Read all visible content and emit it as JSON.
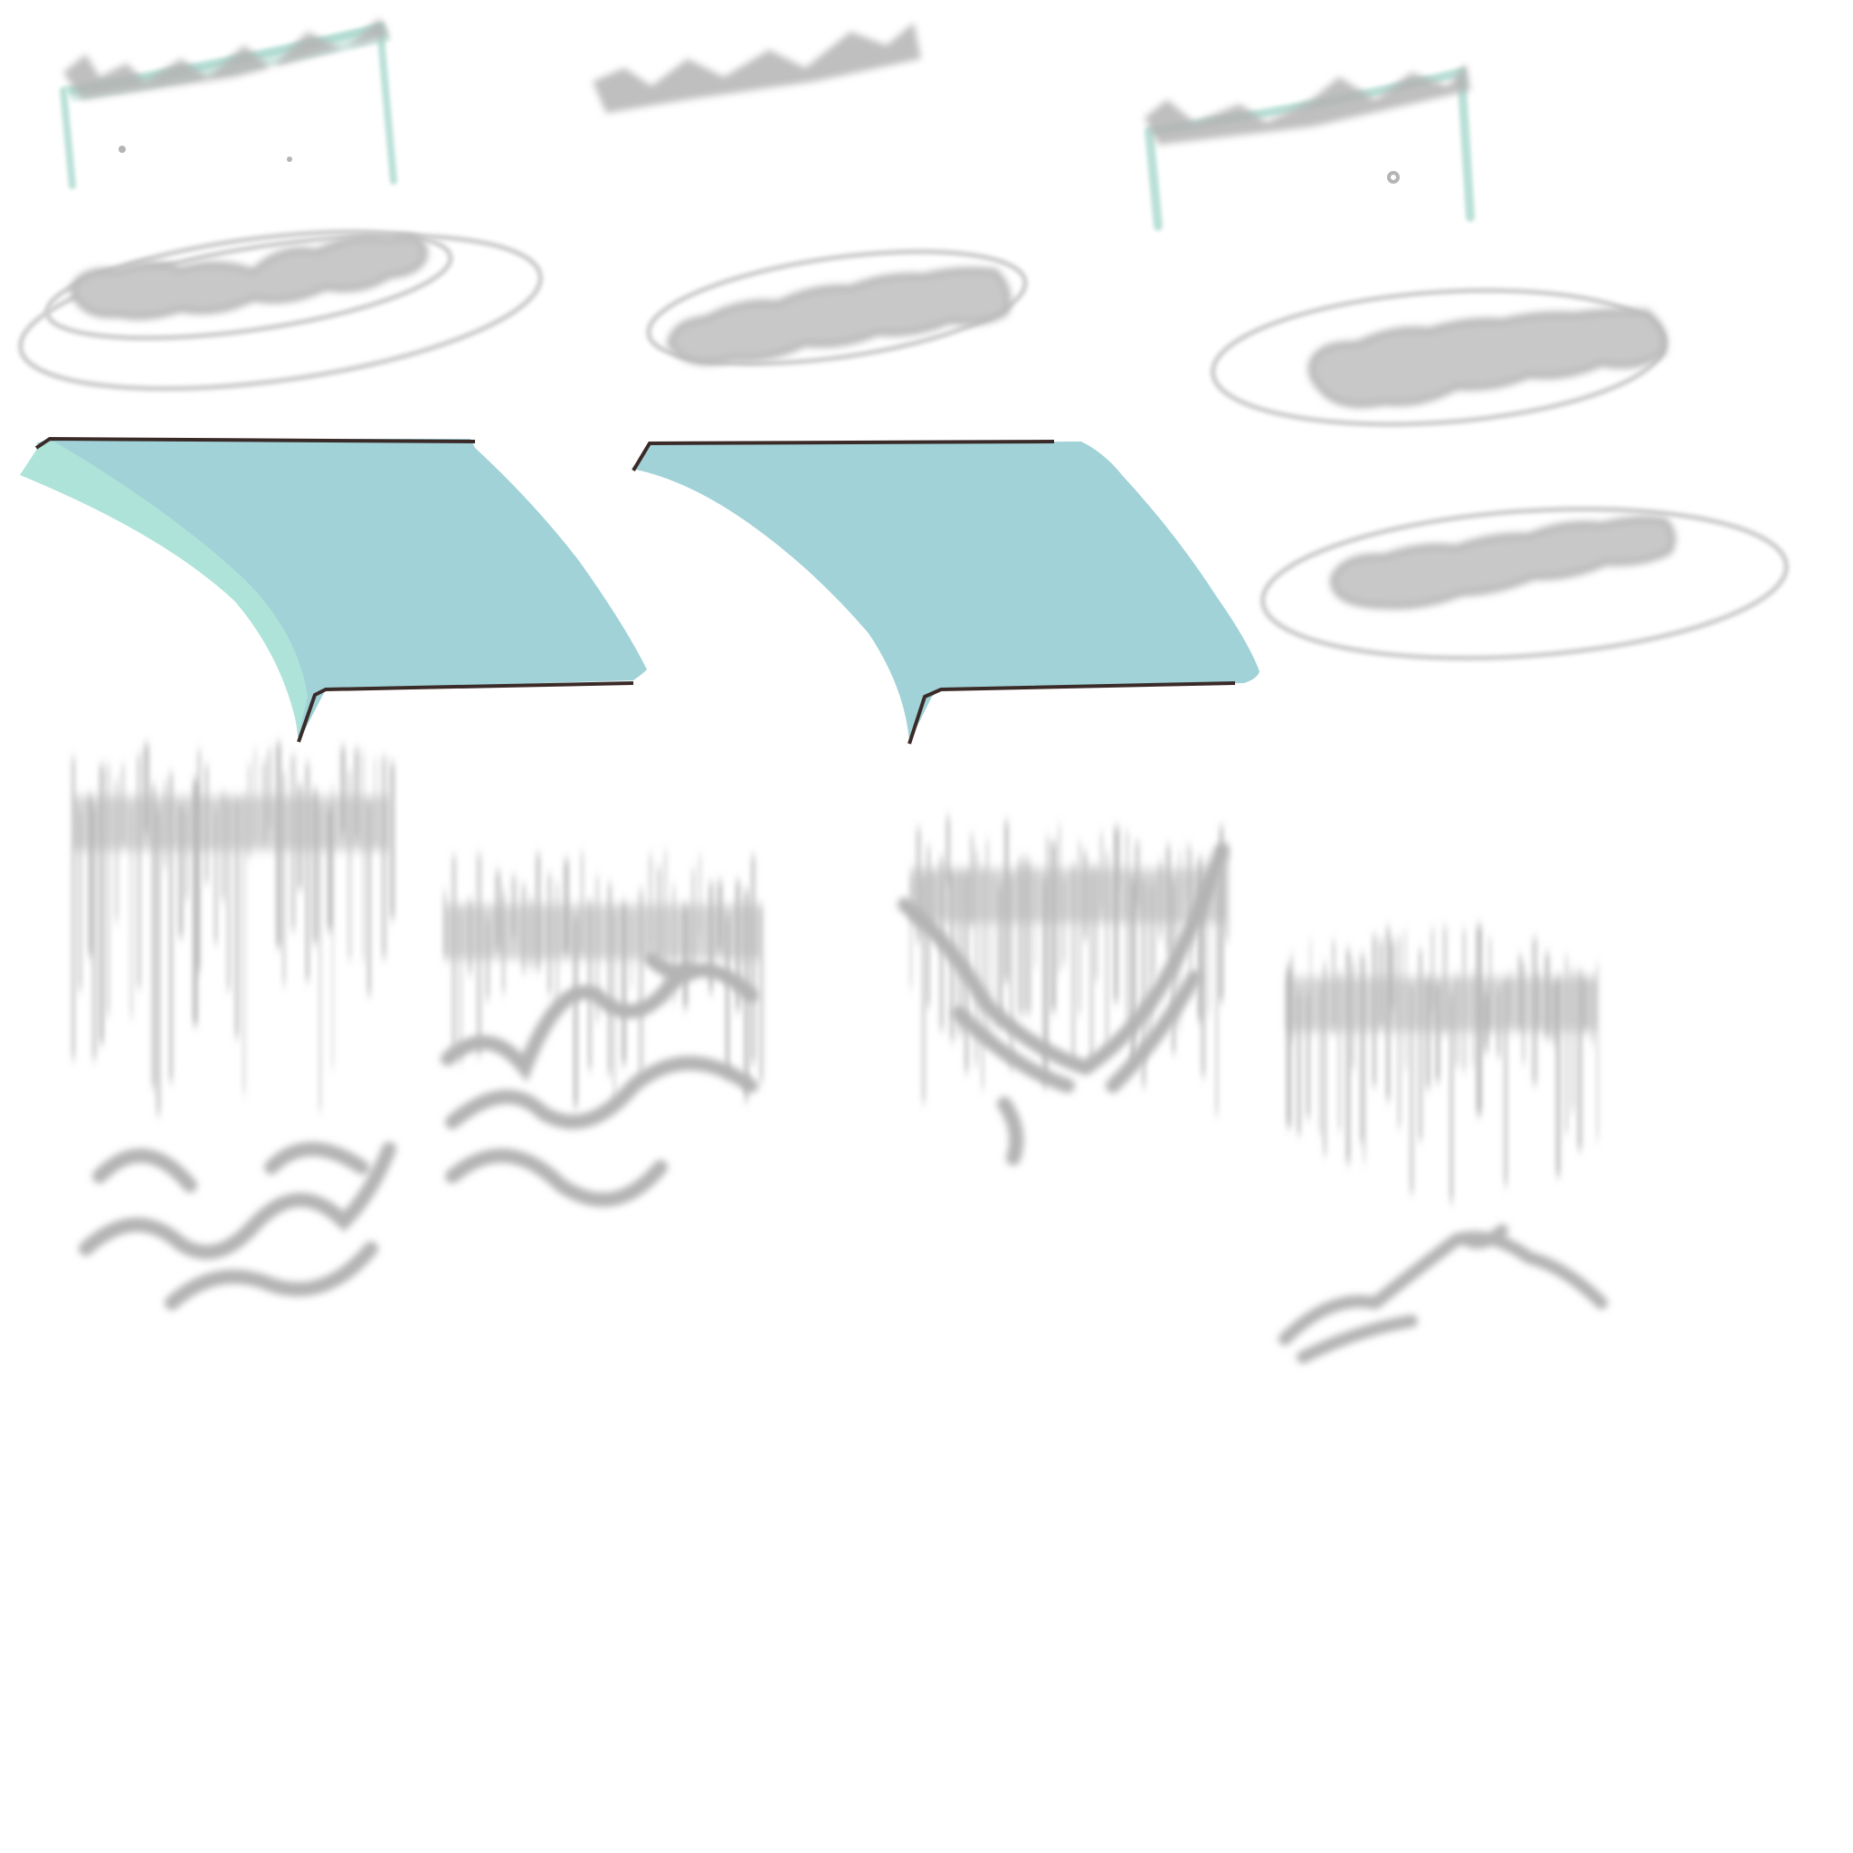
{
  "sheet": {
    "background": "#ffffff",
    "palette": {
      "water_fill": "#a0d2d7",
      "water_highlight": "#aee3d9",
      "edge_dark": "#3a2a28",
      "rim_mint": "#a8d8cc",
      "splash_gray": "#b4b4b4",
      "foam_gray": "#c8c8c8",
      "ripple_gray": "#cfcfcf"
    },
    "sprites": [
      {
        "name": "waterfall-top-sprite-1",
        "kind": "waterfall-top"
      },
      {
        "name": "waterfall-top-sprite-2",
        "kind": "waterfall-top"
      },
      {
        "name": "waterfall-top-sprite-3",
        "kind": "waterfall-top"
      },
      {
        "name": "ripple-foam-sprite-1",
        "kind": "ripple"
      },
      {
        "name": "ripple-foam-sprite-2",
        "kind": "ripple"
      },
      {
        "name": "ripple-foam-sprite-3",
        "kind": "ripple"
      },
      {
        "name": "ripple-foam-sprite-4",
        "kind": "ripple"
      },
      {
        "name": "water-ledge-sprite-1",
        "kind": "ledge"
      },
      {
        "name": "water-ledge-sprite-2",
        "kind": "ledge"
      },
      {
        "name": "waterfall-stream-sprite-1",
        "kind": "stream"
      },
      {
        "name": "waterfall-stream-sprite-2",
        "kind": "stream"
      },
      {
        "name": "waterfall-stream-sprite-3",
        "kind": "stream"
      },
      {
        "name": "waterfall-stream-sprite-4",
        "kind": "stream"
      }
    ]
  }
}
